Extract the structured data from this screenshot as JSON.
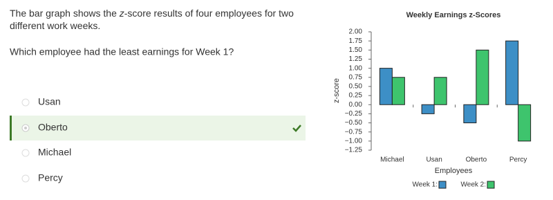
{
  "question": {
    "intro": [
      [
        "The bar graph shows the ",
        "z",
        "-score results of four employees for two"
      ],
      [
        "different work weeks."
      ]
    ],
    "prompt": "Which employee had the least earnings for Week 1?"
  },
  "options": [
    "Usan",
    "Oberto",
    "Michael",
    "Percy"
  ],
  "chart_data": {
    "type": "bar",
    "title": "Weekly Earnings z-Scores",
    "x_label": "Employees",
    "y_label": "z-score",
    "categories": [
      "Michael",
      "Usan",
      "Oberto",
      "Percy"
    ],
    "series": [
      {
        "name": "Week 1:",
        "color": "#3d8fc6",
        "values": [
          1.0,
          -0.25,
          -0.5,
          1.75
        ]
      },
      {
        "name": "Week 2:",
        "color": "#3ec46d",
        "values": [
          0.75,
          0.75,
          1.5,
          -1.0
        ]
      }
    ],
    "ylim": [
      -1.25,
      2.0
    ],
    "yticks": [
      {
        "value": -1.25,
        "label": "−1.25"
      },
      {
        "value": -1.0,
        "label": "−1.00"
      },
      {
        "value": -0.75,
        "label": "−0.75"
      },
      {
        "value": -0.5,
        "label": "−0.50"
      },
      {
        "value": -0.25,
        "label": "−0.25"
      },
      {
        "value": 0,
        "label": "0.00"
      },
      {
        "value": 0.25,
        "label": "0.25"
      },
      {
        "value": 0.5,
        "label": "0.50"
      },
      {
        "value": 0.75,
        "label": "0.75"
      },
      {
        "value": 1.0,
        "label": "1.00"
      },
      {
        "value": 1.25,
        "label": "1.25"
      },
      {
        "value": 1.5,
        "label": "1.50"
      },
      {
        "value": 1.75,
        "label": "1.75"
      },
      {
        "value": 2.0,
        "label": "2.00"
      }
    ]
  }
}
